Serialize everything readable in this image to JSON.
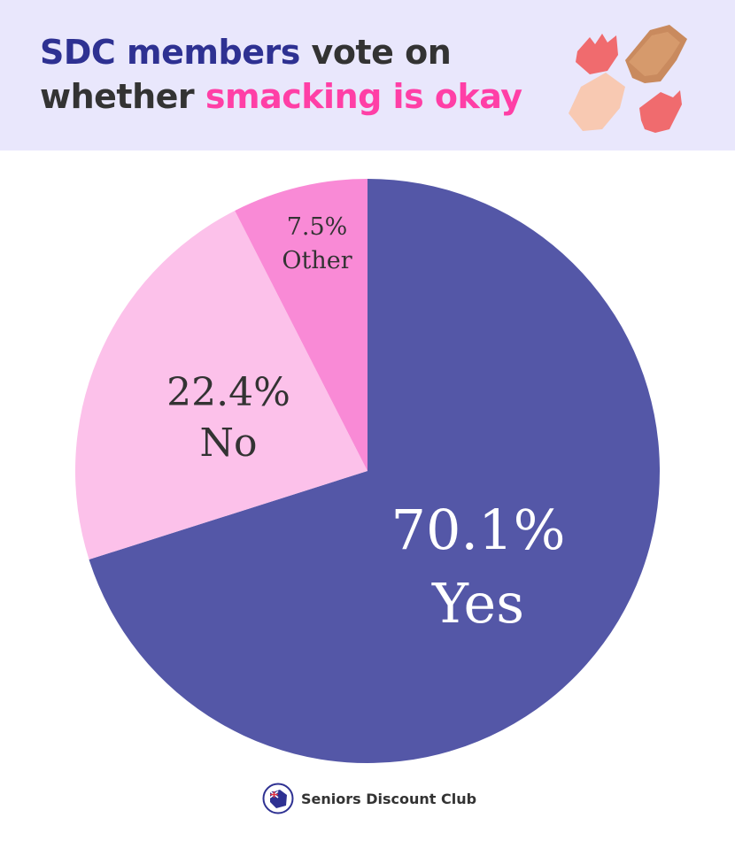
{
  "header": {
    "title_part1": "SDC members",
    "title_part2": " vote on",
    "title_part3": "whether ",
    "title_part4": "smacking is okay"
  },
  "chart_data": {
    "type": "pie",
    "title": "SDC members vote on whether smacking is okay",
    "start_angle": "top",
    "direction": "clockwise",
    "slices": [
      {
        "label": "Yes",
        "value": 70.1,
        "display": "70.1%",
        "color": "#5457a7",
        "text_color": "#ffffff"
      },
      {
        "label": "No",
        "value": 22.4,
        "display": "22.4%",
        "color": "#fcc1ea",
        "text_color": "#333333"
      },
      {
        "label": "Other",
        "value": 7.5,
        "display": "7.5%",
        "color": "#f98ad6",
        "text_color": "#333333"
      }
    ]
  },
  "footer": {
    "brand": "Seniors Discount Club"
  }
}
